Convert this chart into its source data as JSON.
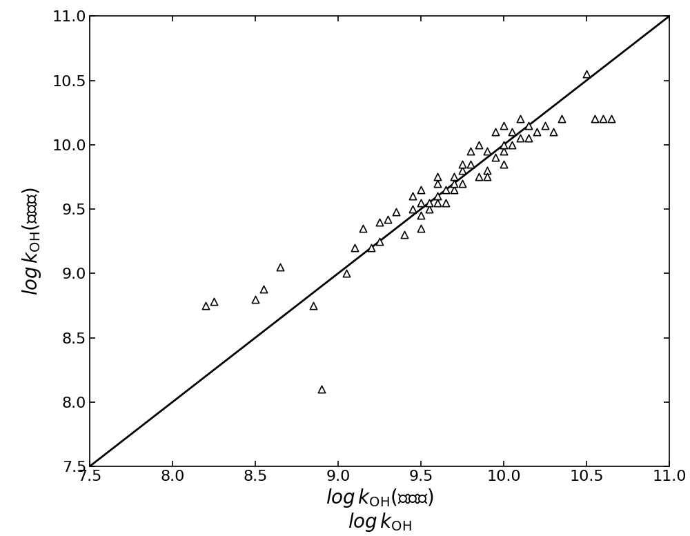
{
  "x_data": [
    8.2,
    8.25,
    8.5,
    8.55,
    8.65,
    8.85,
    8.9,
    9.05,
    9.1,
    9.15,
    9.2,
    9.25,
    9.25,
    9.3,
    9.35,
    9.4,
    9.45,
    9.45,
    9.5,
    9.5,
    9.5,
    9.5,
    9.55,
    9.55,
    9.6,
    9.6,
    9.6,
    9.6,
    9.65,
    9.65,
    9.7,
    9.7,
    9.7,
    9.75,
    9.75,
    9.75,
    9.8,
    9.8,
    9.85,
    9.85,
    9.9,
    9.9,
    9.9,
    9.95,
    9.95,
    10.0,
    10.0,
    10.0,
    10.0,
    10.05,
    10.05,
    10.1,
    10.1,
    10.15,
    10.15,
    10.2,
    10.25,
    10.3,
    10.35,
    10.5,
    10.55,
    10.6,
    10.65
  ],
  "y_data": [
    8.75,
    8.78,
    8.8,
    8.88,
    9.05,
    8.75,
    8.1,
    9.0,
    9.2,
    9.35,
    9.2,
    9.25,
    9.4,
    9.42,
    9.48,
    9.3,
    9.5,
    9.6,
    9.35,
    9.45,
    9.55,
    9.65,
    9.5,
    9.55,
    9.6,
    9.7,
    9.55,
    9.75,
    9.55,
    9.65,
    9.65,
    9.75,
    9.7,
    9.7,
    9.8,
    9.85,
    9.85,
    9.95,
    9.75,
    10.0,
    9.8,
    9.95,
    9.75,
    9.9,
    10.1,
    9.85,
    9.95,
    10.15,
    10.0,
    10.0,
    10.1,
    10.05,
    10.2,
    10.05,
    10.15,
    10.1,
    10.15,
    10.1,
    10.2,
    10.55,
    10.2,
    10.2,
    10.2
  ],
  "xlim": [
    7.5,
    11.0
  ],
  "ylim": [
    7.5,
    11.0
  ],
  "xticks": [
    7.5,
    8.0,
    8.5,
    9.0,
    9.5,
    10.0,
    10.5,
    11.0
  ],
  "yticks": [
    7.5,
    8.0,
    8.5,
    9.0,
    9.5,
    10.0,
    10.5,
    11.0
  ],
  "line_color": "#000000",
  "marker_color": "#000000",
  "marker_facecolor": "white",
  "marker_size": 55,
  "line_width": 2.0,
  "marker_linewidth": 1.2,
  "background_color": "#ffffff",
  "tick_fontsize": 16,
  "label_fontsize": 20,
  "fig_width": 10.0,
  "fig_height": 7.77,
  "dpi": 100
}
